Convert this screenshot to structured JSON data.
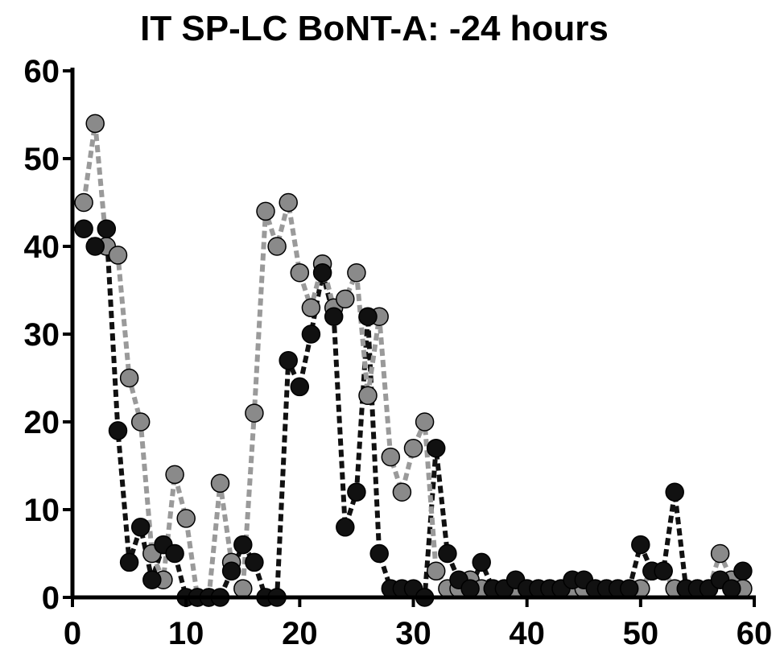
{
  "chart_data": {
    "type": "scatter",
    "title": "IT SP-LC BoNT-A:  -24 hours",
    "xlabel": "",
    "ylabel": "",
    "xlim": [
      0,
      60
    ],
    "ylim": [
      0,
      60
    ],
    "x_ticks": [
      0,
      10,
      20,
      30,
      40,
      50,
      60
    ],
    "y_ticks": [
      0,
      10,
      20,
      30,
      40,
      50,
      60
    ],
    "x_tick_labels": [
      "0",
      "10",
      "20",
      "30",
      "40",
      "50",
      "60"
    ],
    "y_tick_labels": [
      "0",
      "10",
      "20",
      "30",
      "40",
      "50",
      "60"
    ],
    "grid": false,
    "connector_style": "dashed",
    "series": [
      {
        "color": "#111111",
        "line_color": "#111111",
        "x": [
          1,
          2,
          3,
          4,
          5,
          6,
          7,
          8,
          9,
          10,
          11,
          12,
          13,
          14,
          15,
          16,
          17,
          18,
          19,
          20,
          21,
          22,
          23,
          24,
          25,
          26,
          27,
          28,
          29,
          30,
          31,
          32,
          33,
          34,
          35,
          36,
          37,
          38,
          39,
          40,
          41,
          42,
          43,
          44,
          45,
          46,
          47,
          48,
          49,
          50,
          51,
          52,
          53,
          54,
          55,
          56,
          57,
          58,
          59
        ],
        "y": [
          42,
          40,
          42,
          19,
          4,
          8,
          2,
          6,
          5,
          0,
          0,
          0,
          0,
          3,
          6,
          4,
          0,
          0,
          27,
          24,
          30,
          37,
          32,
          8,
          12,
          32,
          5,
          1,
          1,
          1,
          0,
          17,
          5,
          2,
          1,
          4,
          1,
          1,
          2,
          1,
          1,
          1,
          1,
          2,
          2,
          1,
          1,
          1,
          1,
          6,
          3,
          3,
          12,
          1,
          1,
          1,
          2,
          1,
          3
        ]
      },
      {
        "color": "#8a8a8a",
        "line_color": "#9a9a9a",
        "x": [
          1,
          2,
          3,
          4,
          5,
          6,
          7,
          8,
          9,
          10,
          11,
          12,
          13,
          14,
          15,
          16,
          17,
          18,
          19,
          20,
          21,
          22,
          23,
          24,
          25,
          26,
          27,
          28,
          29,
          30,
          31,
          32,
          33,
          34,
          35,
          36,
          37,
          38,
          39,
          40,
          41,
          42,
          43,
          44,
          45,
          46,
          47,
          48,
          49,
          50,
          51,
          52,
          53,
          54,
          55,
          56,
          57,
          58,
          59
        ],
        "y": [
          45,
          54,
          40,
          39,
          25,
          20,
          5,
          2,
          14,
          9,
          0,
          0,
          13,
          4,
          1,
          21,
          44,
          40,
          45,
          37,
          33,
          38,
          33,
          34,
          37,
          23,
          32,
          16,
          12,
          17,
          20,
          3,
          1,
          1,
          2,
          1,
          1,
          1,
          1,
          1,
          1,
          1,
          1,
          1,
          1,
          1,
          1,
          1,
          1,
          1,
          3,
          3,
          1,
          1,
          1,
          1,
          5,
          2,
          1
        ]
      }
    ]
  }
}
